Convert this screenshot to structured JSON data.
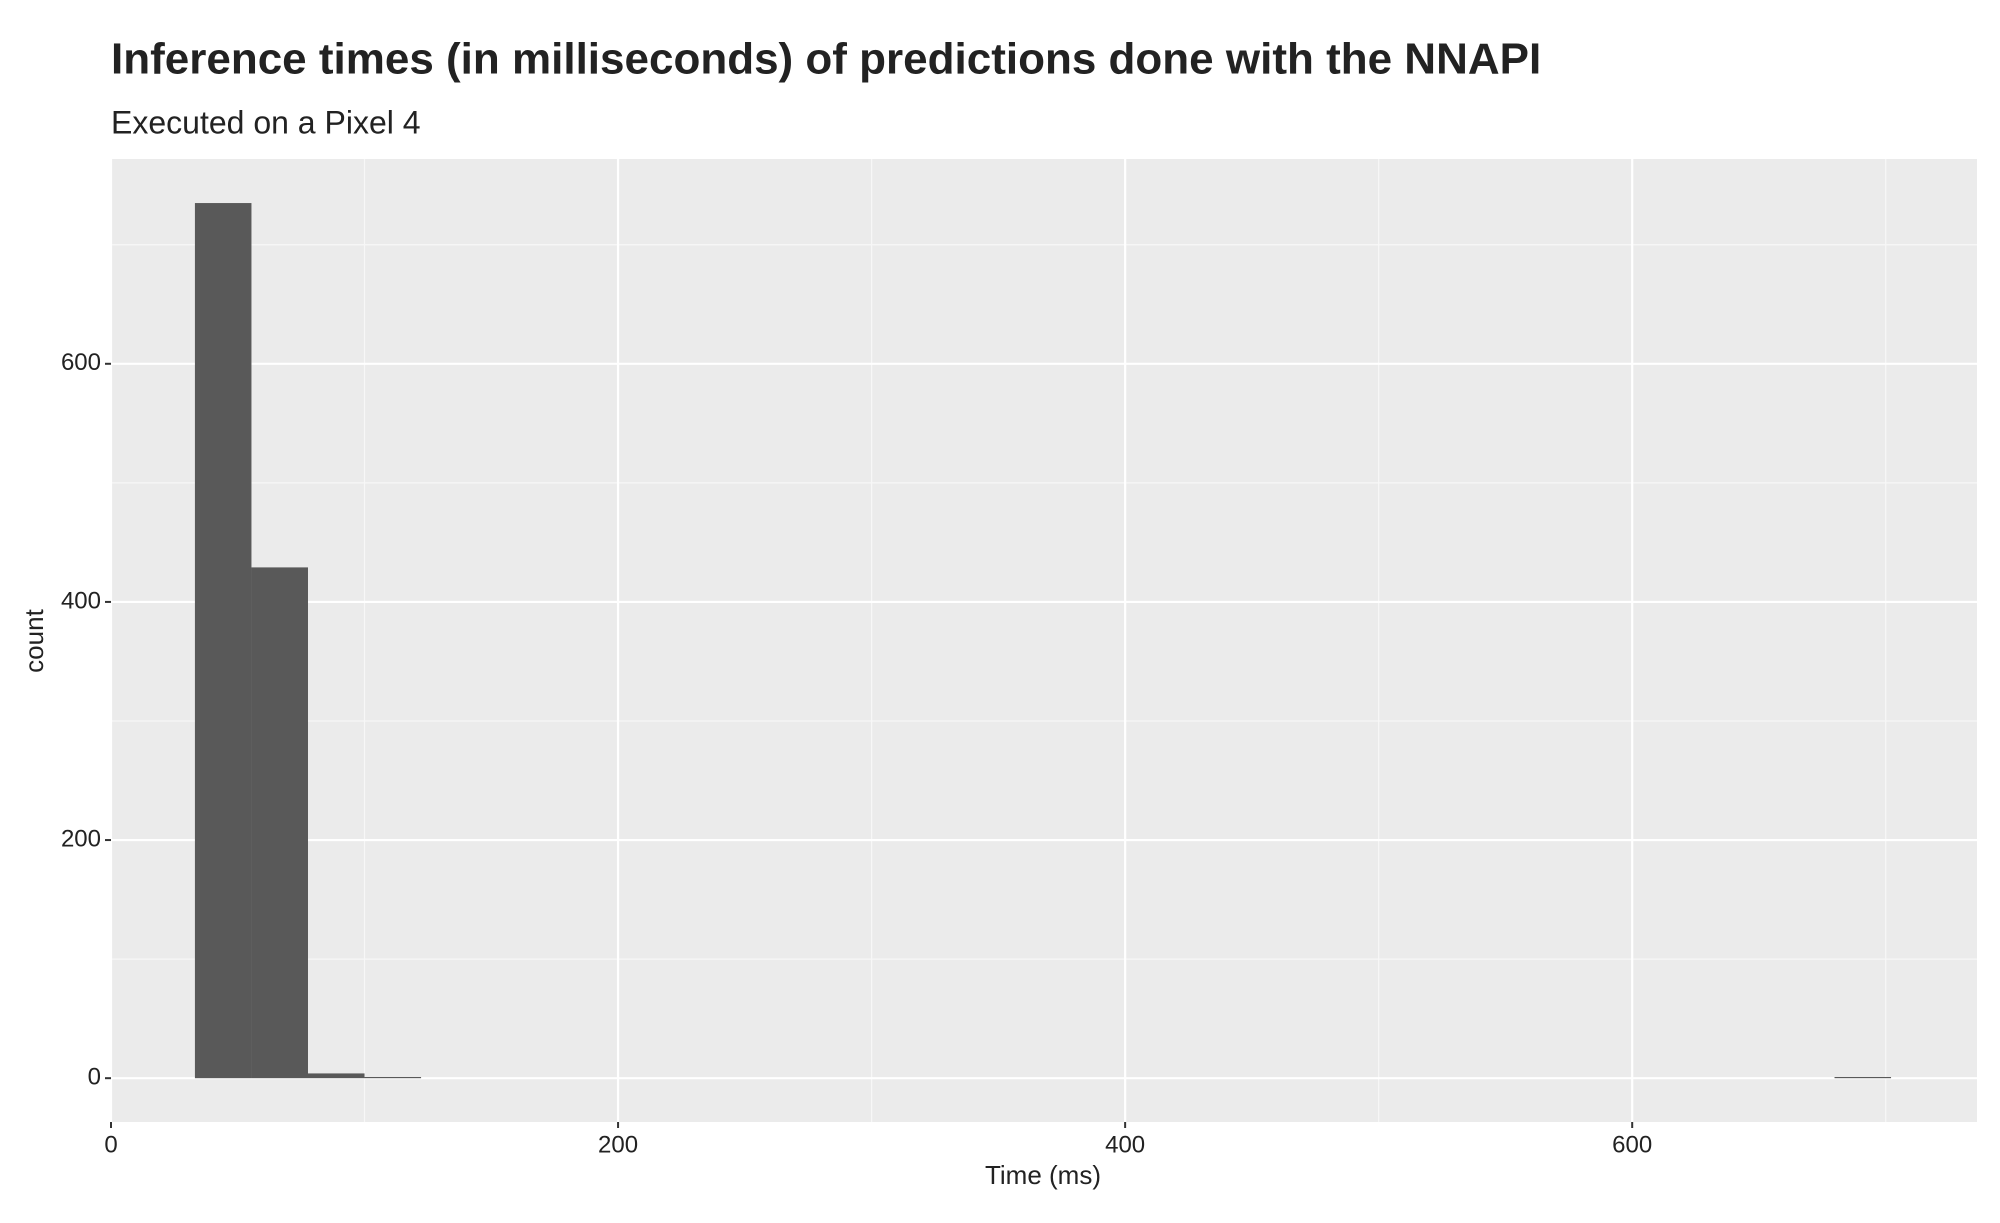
{
  "chart_data": {
    "type": "histogram",
    "title": "Inference times (in milliseconds) of predictions done with the NNAPI",
    "subtitle": "Executed on a Pixel 4",
    "x_label": "Time (ms)",
    "y_label": "count",
    "bins": [
      33.1,
      55.4,
      77.7,
      100.0,
      122.3,
      144.6,
      166.9,
      189.2,
      211.5,
      233.8,
      256.1,
      278.4,
      300.7,
      323.0,
      345.3,
      367.6,
      389.9,
      412.2,
      434.5,
      456.8,
      479.1,
      501.4,
      523.7,
      546.0,
      568.3,
      590.6,
      612.9,
      635.2,
      657.5,
      679.8,
      702.1
    ],
    "values": [
      735,
      429,
      4,
      1,
      0,
      0,
      0,
      0,
      0,
      0,
      0,
      0,
      0,
      0,
      0,
      0,
      0,
      0,
      0,
      0,
      0,
      0,
      0,
      0,
      0,
      0,
      0,
      0,
      0,
      1
    ],
    "color": "#595959",
    "xlim": [
      0,
      736
    ],
    "xticks": [
      0,
      200,
      400,
      600
    ],
    "ylim": [
      -36.8,
      772
    ],
    "yticks": [
      0,
      200,
      400,
      600
    ],
    "x_minor_grid": [
      100,
      300,
      500,
      700
    ],
    "y_minor_grid": [
      100,
      300,
      500,
      700
    ],
    "grid": true
  }
}
